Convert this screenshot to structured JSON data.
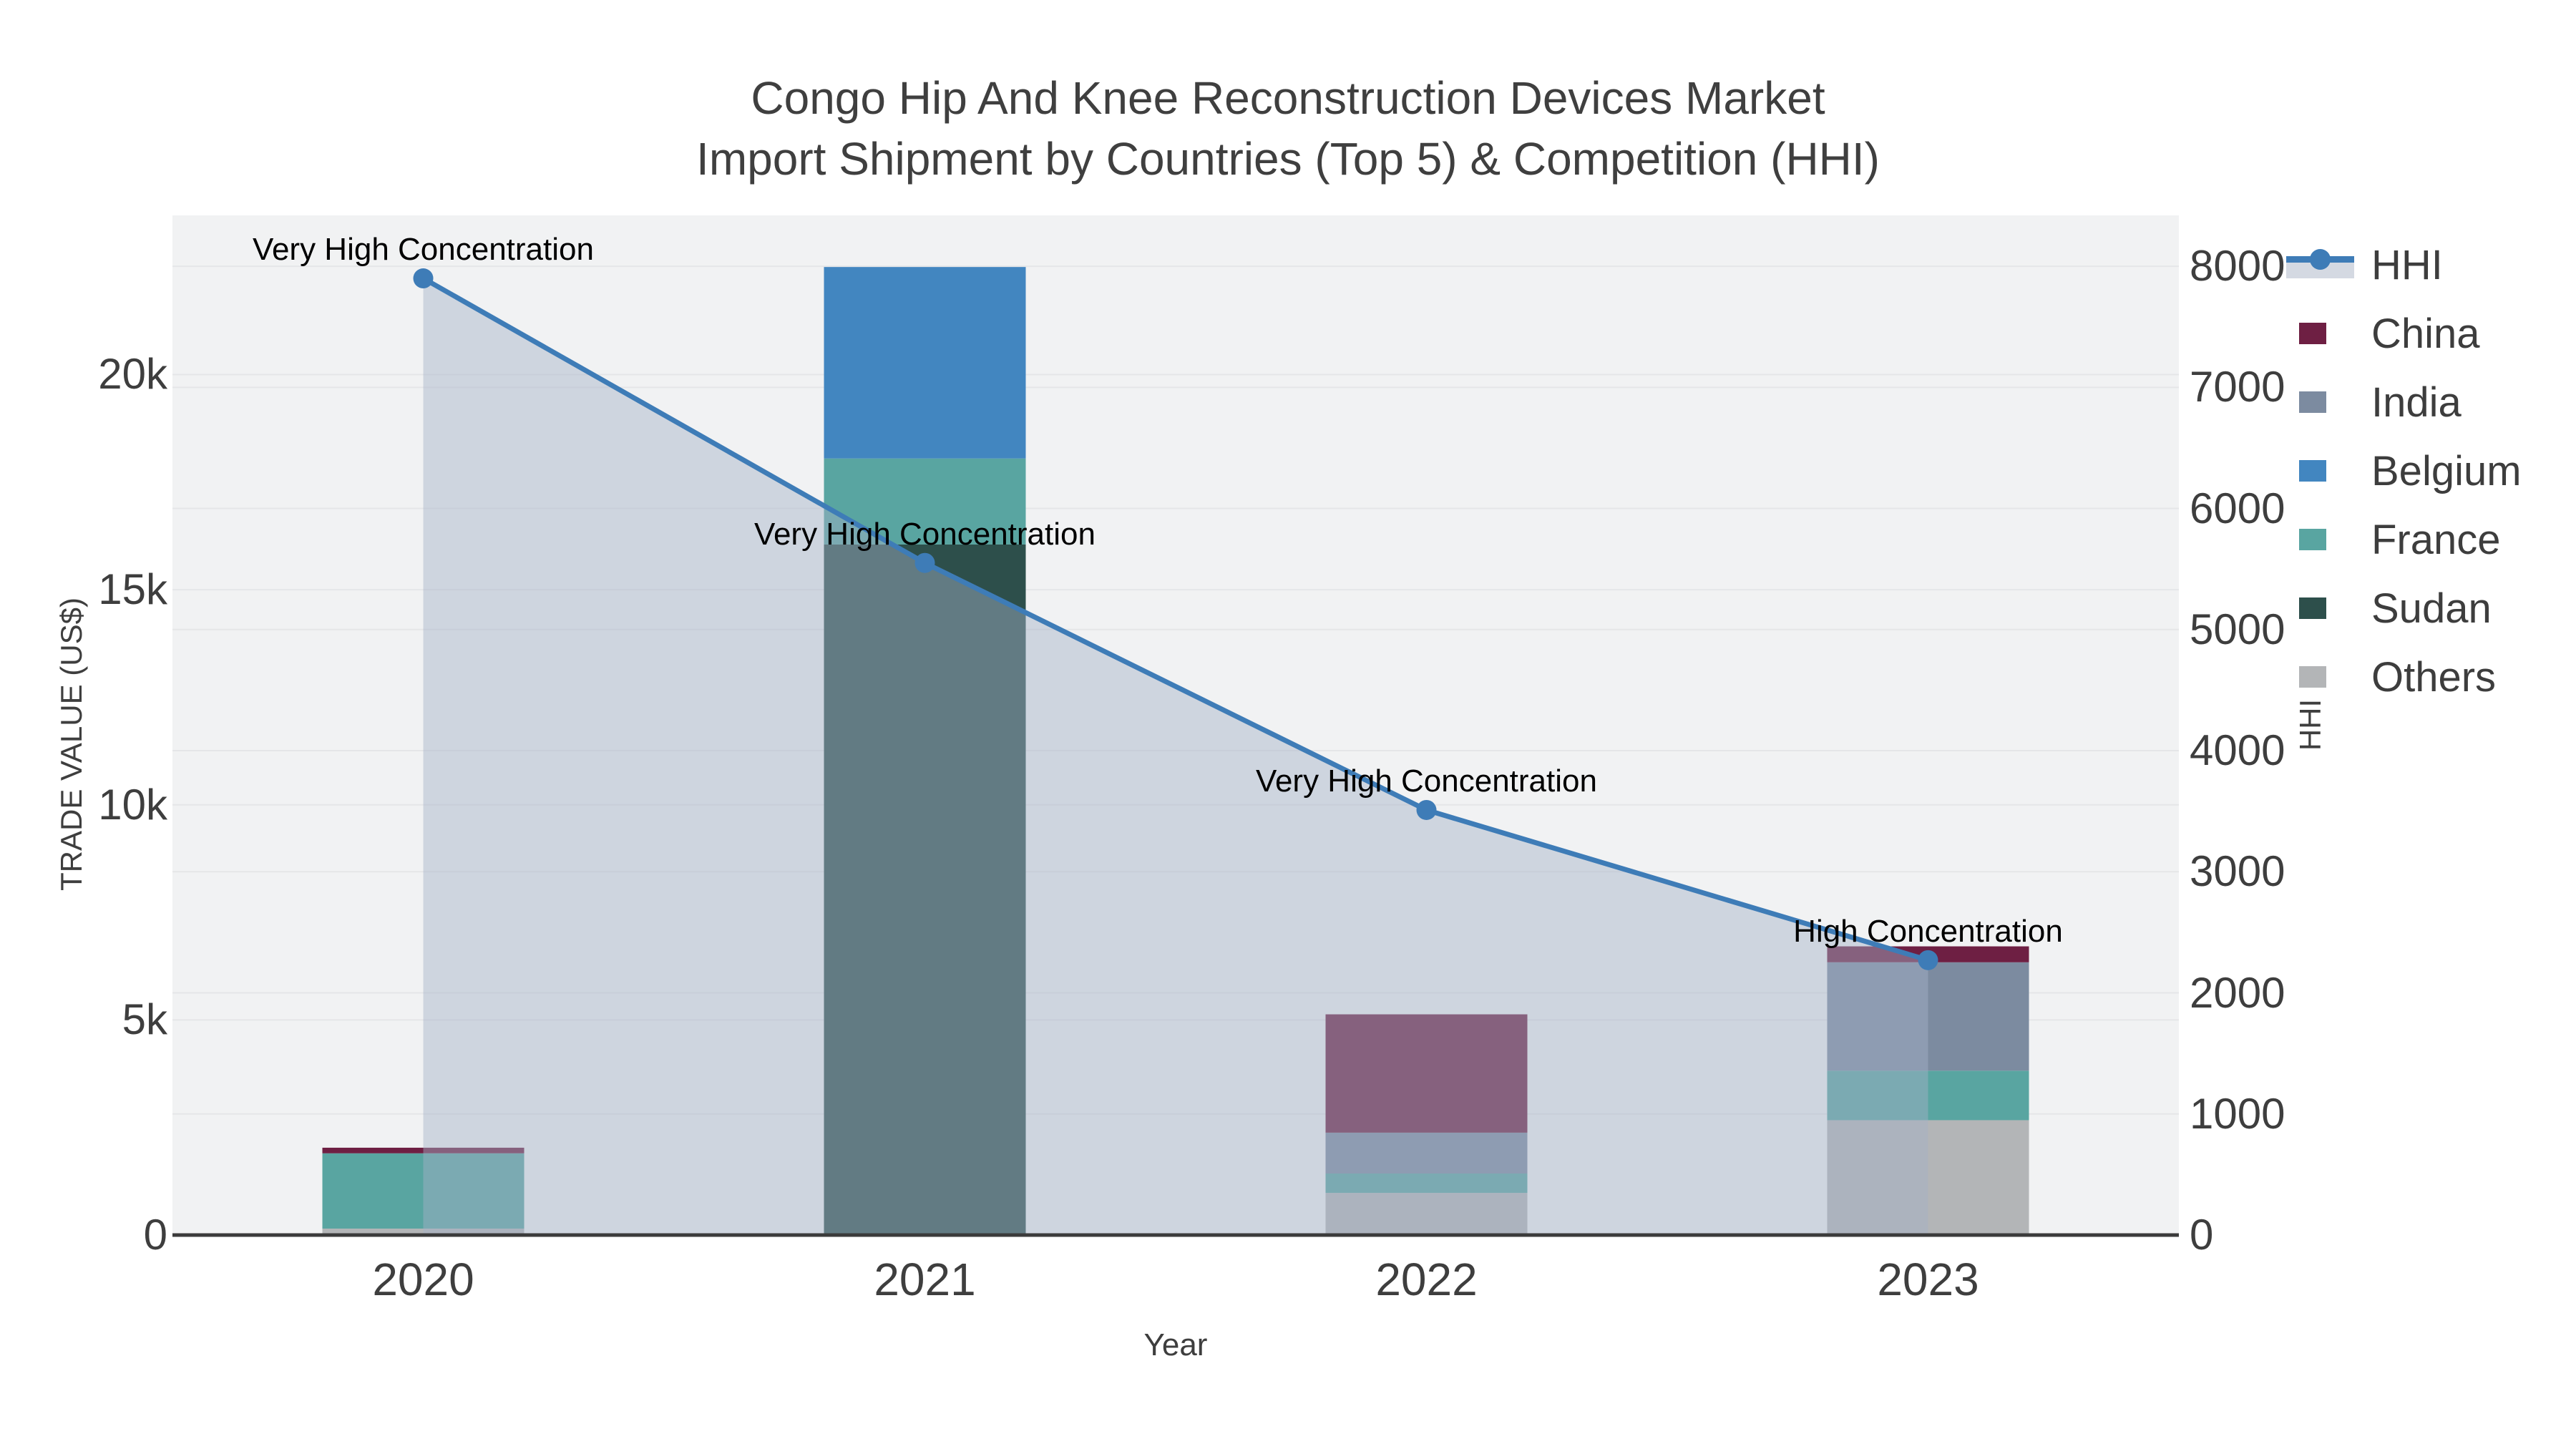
{
  "title": {
    "line1": "Congo Hip And Knee Reconstruction Devices Market",
    "line2": "Import Shipment by Countries (Top 5) & Competition (HHI)"
  },
  "axes": {
    "x_title": "Year",
    "y_left_title": "TRADE VALUE (US$)",
    "y_right_title": "HHI"
  },
  "legend": {
    "items": [
      {
        "label": "HHI",
        "marker": "line",
        "color": "#3e7cb7",
        "fill": "#d4d9e2"
      },
      {
        "label": "China",
        "marker": "square",
        "color": "#6e1f43"
      },
      {
        "label": "India",
        "marker": "square",
        "color": "#7c8ba0"
      },
      {
        "label": "Belgium",
        "marker": "square",
        "color": "#4286c0"
      },
      {
        "label": "France",
        "marker": "square",
        "color": "#59a5a1"
      },
      {
        "label": "Sudan",
        "marker": "square",
        "color": "#2d4f4b"
      },
      {
        "label": "Others",
        "marker": "square",
        "color": "#b3b5b7"
      }
    ]
  },
  "chart_data": {
    "type": "combo",
    "subtype": "stacked-bar(left axis) + line-with-area(right axis)",
    "title": "Congo Hip And Knee Reconstruction Devices Market — Import Shipment by Countries (Top 5) & Competition (HHI)",
    "categories": [
      "2020",
      "2021",
      "2022",
      "2023"
    ],
    "xlabel": "Year",
    "series": [
      {
        "name": "China",
        "color": "#6e1f43",
        "values": [
          130,
          0,
          2750,
          370
        ]
      },
      {
        "name": "India",
        "color": "#7c8ba0",
        "values": [
          0,
          0,
          950,
          2520
        ]
      },
      {
        "name": "Belgium",
        "color": "#4286c0",
        "values": [
          0,
          4450,
          0,
          0
        ]
      },
      {
        "name": "France",
        "color": "#59a5a1",
        "values": [
          1750,
          2000,
          450,
          1150
        ]
      },
      {
        "name": "Sudan",
        "color": "#2d4f4b",
        "values": [
          0,
          16050,
          0,
          0
        ]
      },
      {
        "name": "Others",
        "color": "#b3b5b7",
        "values": [
          150,
          0,
          980,
          2670
        ]
      }
    ],
    "stack_order_bottom_to_top": [
      "Others",
      "Sudan",
      "France",
      "Belgium",
      "India",
      "China"
    ],
    "line_series": {
      "name": "HHI",
      "axis": "right",
      "color": "#3e7cb7",
      "area_fill": "rgba(164,177,199,0.45)",
      "values": [
        7900,
        5550,
        3510,
        2270
      ]
    },
    "annotations": [
      {
        "category": "2020",
        "text": "Very High Concentration"
      },
      {
        "category": "2021",
        "text": "Very High Concentration"
      },
      {
        "category": "2022",
        "text": "Very High Concentration"
      },
      {
        "category": "2023",
        "text": "High Concentration"
      }
    ],
    "y_left": {
      "label": "TRADE VALUE (US$)",
      "range": [
        0,
        23700
      ],
      "ticks": [
        {
          "value": 0,
          "label": "0"
        },
        {
          "value": 5000,
          "label": "5k"
        },
        {
          "value": 10000,
          "label": "10k"
        },
        {
          "value": 15000,
          "label": "15k"
        },
        {
          "value": 20000,
          "label": "20k"
        }
      ]
    },
    "y_right": {
      "label": "HHI",
      "range": [
        0,
        8420
      ],
      "ticks": [
        {
          "value": 0,
          "label": "0"
        },
        {
          "value": 1000,
          "label": "1000"
        },
        {
          "value": 2000,
          "label": "2000"
        },
        {
          "value": 3000,
          "label": "3000"
        },
        {
          "value": 4000,
          "label": "4000"
        },
        {
          "value": 5000,
          "label": "5000"
        },
        {
          "value": 6000,
          "label": "6000"
        },
        {
          "value": 7000,
          "label": "7000"
        },
        {
          "value": 8000,
          "label": "8000"
        }
      ]
    },
    "layout_hints": {
      "grid": true,
      "legend_position": "right",
      "plot_bg": "#f1f2f3"
    },
    "styles": {
      "plot_bg": "#f1f2f3",
      "grid": "#e5e6e8",
      "axis_line": "#3b3b3b",
      "tick_text": "#3e3e3e",
      "annotation_text": "#000000"
    }
  }
}
